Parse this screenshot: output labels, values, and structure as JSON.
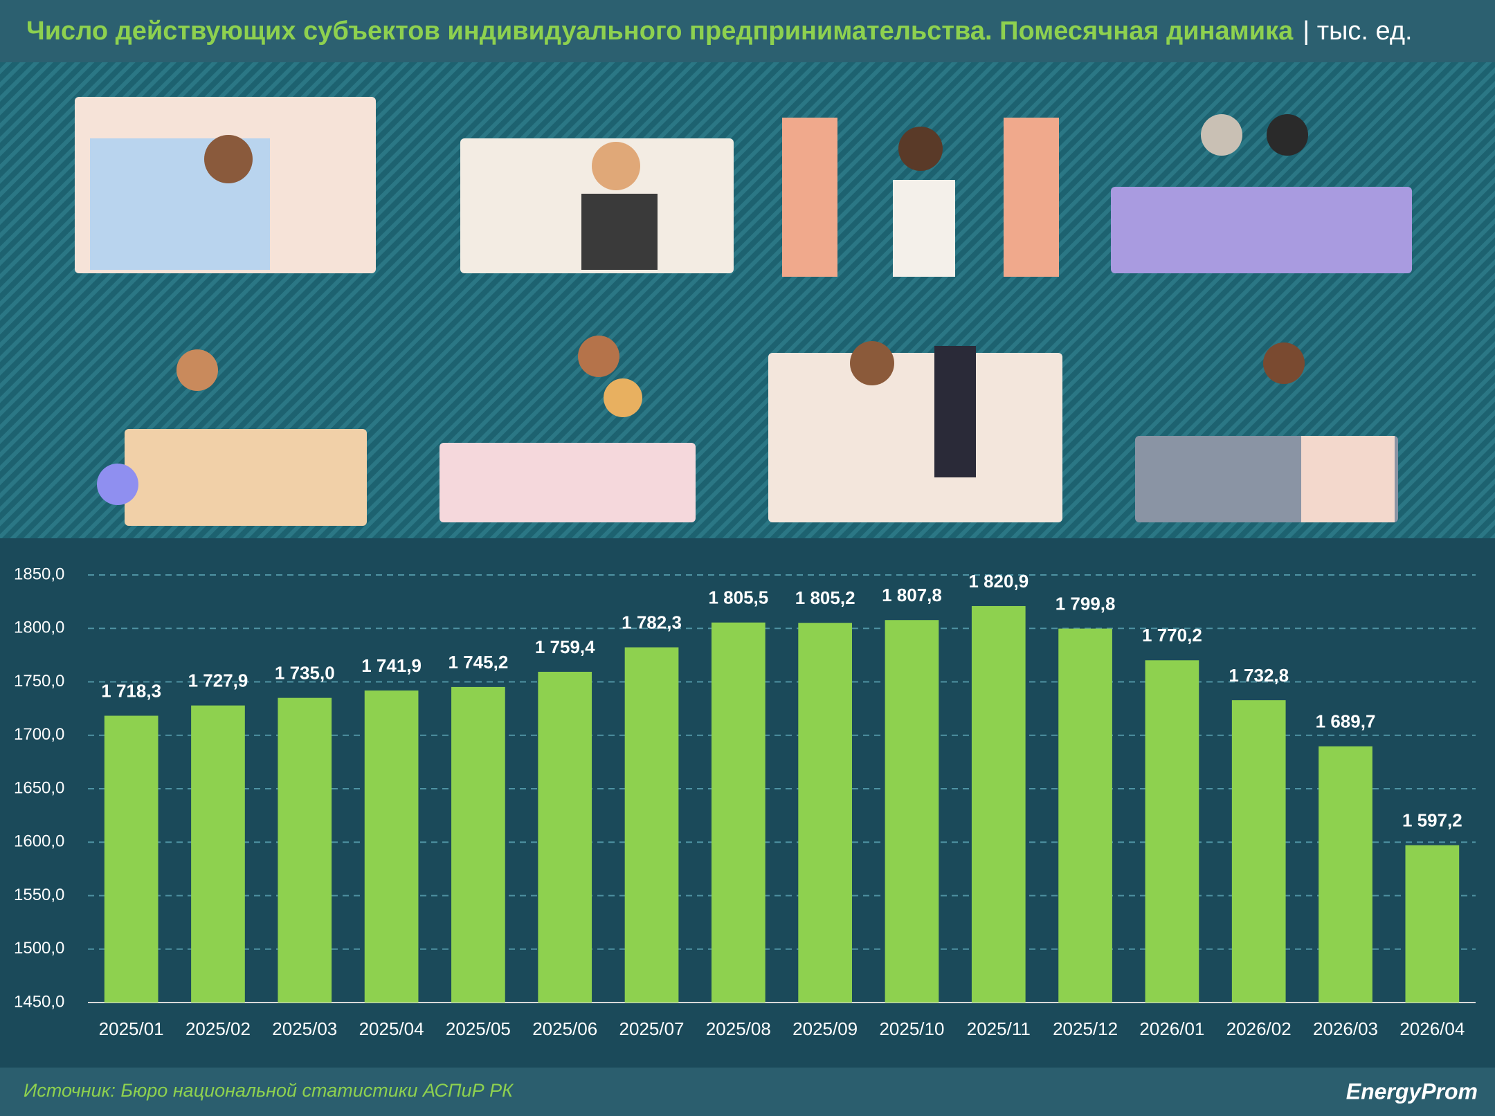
{
  "chart_data": {
    "type": "bar",
    "title": "Число действующих субъектов индивидуального предпринимательства. Помесячная динамика",
    "subtitle": "| тыс. ед.",
    "categories": [
      "2025/01",
      "2025/02",
      "2025/03",
      "2025/04",
      "2025/05",
      "2025/06",
      "2025/07",
      "2025/08",
      "2025/09",
      "2025/10",
      "2025/11",
      "2025/12",
      "2026/01",
      "2026/02",
      "2026/03",
      "2026/04"
    ],
    "values": [
      1718.3,
      1727.9,
      1735.0,
      1741.9,
      1745.2,
      1759.4,
      1782.3,
      1805.5,
      1805.2,
      1807.8,
      1820.9,
      1799.8,
      1770.2,
      1732.8,
      1689.7,
      1597.2
    ],
    "value_labels": [
      "1 718,3",
      "1 727,9",
      "1 735,0",
      "1 741,9",
      "1 745,2",
      "1 759,4",
      "1 782,3",
      "1 805,5",
      "1 805,2",
      "1 807,8",
      "1 820,9",
      "1 799,8",
      "1 770,2",
      "1 732,8",
      "1 689,7",
      "1 597,2"
    ],
    "color": "#8ed14f",
    "ylim": [
      1450,
      1850
    ],
    "yticks": [
      {
        "value": 1450,
        "label": "1450,0"
      },
      {
        "value": 1500,
        "label": "1500,0"
      },
      {
        "value": 1550,
        "label": "1550,0"
      },
      {
        "value": 1600,
        "label": "1600,0"
      },
      {
        "value": 1650,
        "label": "1650,0"
      },
      {
        "value": 1700,
        "label": "1700,0"
      },
      {
        "value": 1750,
        "label": "1750,0"
      },
      {
        "value": 1800,
        "label": "1800,0"
      },
      {
        "value": 1850,
        "label": "1850,0"
      }
    ],
    "grid": true
  },
  "footer": {
    "source": "Источник: Бюро национальной статистики АСПиР РК",
    "logo": "EnergyProm"
  }
}
